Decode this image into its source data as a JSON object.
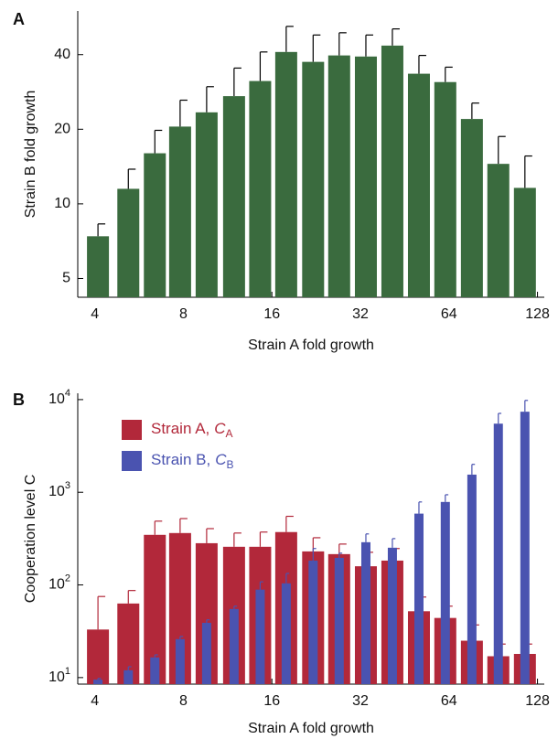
{
  "chart_data": [
    {
      "type": "bar",
      "panel": "A",
      "xlabel": "Strain A fold growth",
      "ylabel": "Strain B fold growth",
      "xscale": "log",
      "yscale": "log",
      "x": [
        4.1,
        5.2,
        6.4,
        7.8,
        9.6,
        11.9,
        14.6,
        17.9,
        22.1,
        27.1,
        33.4,
        41.1,
        50.6,
        62.2,
        76.6,
        94.2,
        116
      ],
      "series": [
        {
          "color": "#3a6b3e",
          "values": [
            7.4,
            11.5,
            16.0,
            20.5,
            23.4,
            27.2,
            31.3,
            41.0,
            37.4,
            39.7,
            39.3,
            43.5,
            33.5,
            31.0,
            22.0,
            14.5,
            11.6
          ],
          "errors": [
            0.9,
            2.3,
            3.8,
            5.7,
            6.3,
            8.1,
            9.7,
            11,
            10.6,
            9.3,
            8.7,
            7.3,
            6.2,
            4.6,
            3.5,
            4.2,
            4.0
          ]
        }
      ],
      "xlim": [
        3.5,
        135
      ],
      "xticks": [
        4,
        8,
        16,
        32,
        64,
        128
      ],
      "ylim": [
        4.2,
        60
      ],
      "yticks": [
        5,
        10,
        20,
        40
      ]
    },
    {
      "type": "bar",
      "panel": "B",
      "xlabel": "Strain A fold growth",
      "ylabel": "Cooperation level C",
      "xscale": "log",
      "yscale": "log",
      "x": [
        4.1,
        5.2,
        6.4,
        7.8,
        9.6,
        11.9,
        14.6,
        17.9,
        22.1,
        27.1,
        33.4,
        41.1,
        50.6,
        62.2,
        76.6,
        94.2,
        116
      ],
      "series": [
        {
          "name": "Strain A,",
          "symbol": "C",
          "subscript": "A",
          "color": "#b2283a",
          "values": [
            33,
            63,
            347,
            363,
            282,
            258,
            258,
            372,
            230,
            215,
            159,
            183,
            52,
            44,
            25,
            17,
            18
          ],
          "errors": [
            42,
            24,
            141,
            157,
            123,
            105,
            114,
            178,
            93,
            61,
            66,
            64,
            22,
            15,
            12,
            6,
            5
          ]
        },
        {
          "name": "Strain B,",
          "symbol": "C",
          "subscript": "B",
          "color": "#4a53b0",
          "values": [
            9.5,
            12,
            16.5,
            26,
            39,
            55,
            89,
            104,
            183,
            196,
            289,
            252,
            588,
            786,
            1550,
            5500,
            7400
          ],
          "errors": [
            0.3,
            1.1,
            1.1,
            1.8,
            3,
            4,
            19,
            29,
            64,
            24,
            66,
            64,
            198,
            154,
            450,
            1600,
            2400
          ]
        }
      ],
      "xlim": [
        3.5,
        135
      ],
      "xticks": [
        4,
        8,
        16,
        32,
        64,
        128
      ],
      "ylim": [
        8.5,
        11700
      ],
      "yticks": [
        {
          "value": 10,
          "label": "10",
          "exponent": "1"
        },
        {
          "value": 100,
          "label": "10",
          "exponent": "2"
        },
        {
          "value": 1000,
          "label": "10",
          "exponent": "3"
        },
        {
          "value": 10000,
          "label": "10",
          "exponent": "4"
        }
      ]
    }
  ]
}
